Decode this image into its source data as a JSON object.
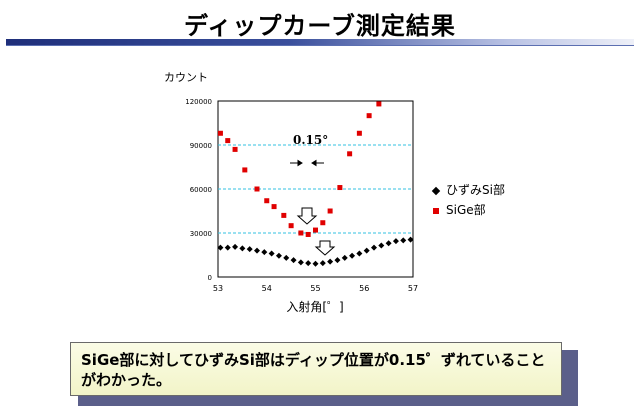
{
  "title": "ディップカーブ測定結果",
  "chart_data": {
    "type": "scatter",
    "ylabel": "カウント",
    "xlabel": "入射角[゜]",
    "xlim": [
      53,
      57
    ],
    "ylim": [
      0,
      120000
    ],
    "x_ticks": [
      "53",
      "54",
      "55",
      "56",
      "57"
    ],
    "y_ticks": [
      "0",
      "30000",
      "60000",
      "90000",
      "120000"
    ],
    "grid": "horizontal dashed",
    "legend_position": "right",
    "annotation": "0.15°",
    "series": [
      {
        "name": "ひずみSi部",
        "color": "#000000",
        "marker": "diamond",
        "x": [
          53.05,
          53.2,
          53.35,
          53.5,
          53.65,
          53.8,
          53.95,
          54.1,
          54.25,
          54.4,
          54.55,
          54.7,
          54.85,
          55.0,
          55.15,
          55.3,
          55.45,
          55.6,
          55.75,
          55.9,
          56.05,
          56.2,
          56.35,
          56.5,
          56.65,
          56.8,
          56.95
        ],
        "y": [
          20000,
          20000,
          20500,
          19500,
          19000,
          18000,
          17000,
          16000,
          14500,
          13000,
          11500,
          10000,
          9500,
          9000,
          9500,
          10500,
          11500,
          13000,
          14500,
          16000,
          18000,
          20000,
          21500,
          23000,
          24500,
          25000,
          25500
        ]
      },
      {
        "name": "SiGe部",
        "color": "#e00000",
        "marker": "square",
        "x": [
          53.05,
          53.2,
          53.35,
          53.55,
          53.8,
          54.0,
          54.15,
          54.35,
          54.5,
          54.7,
          54.85,
          55.0,
          55.15,
          55.3,
          55.5,
          55.7,
          55.9,
          56.1,
          56.3
        ],
        "y": [
          98000,
          93000,
          87000,
          73000,
          60000,
          52000,
          48000,
          42000,
          35000,
          30000,
          29000,
          32000,
          37000,
          45000,
          61000,
          84000,
          98000,
          110000,
          118000
        ]
      }
    ]
  },
  "note": "SiGe部に対してひずみSi部はディップ位置が0.15゜ずれていることがわかった。"
}
